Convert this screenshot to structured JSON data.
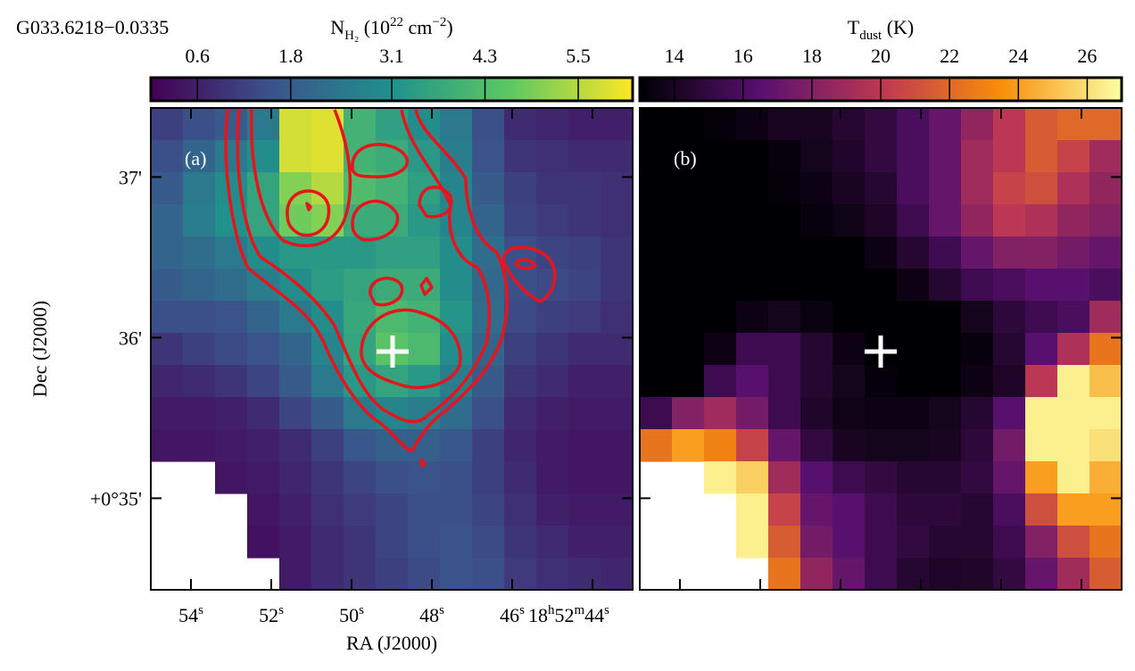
{
  "chart_data": [
    {
      "type": "heatmap",
      "title": "G033.6218−0.0335",
      "panel_label": "(a)",
      "colormap": "viridis",
      "colorbar_label": [
        "N",
        "H₂",
        " (10",
        "22",
        " cm",
        "−2",
        ")"
      ],
      "colorbar_label_styles": [
        "normal",
        "sub",
        "normal",
        "sup",
        "normal",
        "sup",
        "normal"
      ],
      "clim": [
        0,
        6.2
      ],
      "cticks": [
        0.6,
        1.8,
        3.1,
        4.3,
        5.5
      ],
      "x_label": "RA (J2000)",
      "y_label": "Dec (J2000)",
      "xlim": [
        55,
        43
      ],
      "ylim": [
        34.43,
        37.43
      ],
      "xticks": [
        {
          "value": 54,
          "label": [
            "54",
            "s"
          ]
        },
        {
          "value": 52,
          "label": [
            "52",
            "s"
          ]
        },
        {
          "value": 50,
          "label": [
            "50",
            "s"
          ]
        },
        {
          "value": 48,
          "label": [
            "48",
            "s"
          ]
        },
        {
          "value": 46,
          "label": [
            "46",
            "s"
          ]
        },
        {
          "value": 44,
          "label": [
            "18",
            "h",
            "52",
            "m",
            "44",
            "s"
          ]
        }
      ],
      "yticks": [
        {
          "value": 37,
          "label": "37'"
        },
        {
          "value": 36,
          "label": "36'"
        },
        {
          "value": 35,
          "label": "+0°35'"
        }
      ],
      "z": [
        [
          1.2,
          1.5,
          1.8,
          2.5,
          5.8,
          5.9,
          4.0,
          3.5,
          3.0,
          2.5,
          1.5,
          0.8,
          0.7,
          0.6,
          0.6
        ],
        [
          1.5,
          2.0,
          2.5,
          3.0,
          5.8,
          5.9,
          4.0,
          3.8,
          3.3,
          2.6,
          1.6,
          1.0,
          0.9,
          0.8,
          0.8
        ],
        [
          1.8,
          2.5,
          3.0,
          3.6,
          5.0,
          5.5,
          4.3,
          4.0,
          3.5,
          2.8,
          1.8,
          1.2,
          1.0,
          1.0,
          0.9
        ],
        [
          2.0,
          2.6,
          3.1,
          3.6,
          4.8,
          5.0,
          3.8,
          3.8,
          3.3,
          2.8,
          2.0,
          1.3,
          1.1,
          1.0,
          0.9
        ],
        [
          2.0,
          2.2,
          2.5,
          3.0,
          3.3,
          3.3,
          3.3,
          3.5,
          3.5,
          3.0,
          2.2,
          1.5,
          1.3,
          1.2,
          1.0
        ],
        [
          1.8,
          2.0,
          2.2,
          2.6,
          3.0,
          3.4,
          3.6,
          3.8,
          3.8,
          3.0,
          2.1,
          1.5,
          1.4,
          1.3,
          1.0
        ],
        [
          1.5,
          1.5,
          1.6,
          2.0,
          2.5,
          3.0,
          3.7,
          4.2,
          4.0,
          3.2,
          2.2,
          1.4,
          1.2,
          1.1,
          0.9
        ],
        [
          1.0,
          1.2,
          1.4,
          1.6,
          2.0,
          2.8,
          3.6,
          4.5,
          4.2,
          3.0,
          2.0,
          1.2,
          1.0,
          0.8,
          0.8
        ],
        [
          0.7,
          0.8,
          1.0,
          1.3,
          1.8,
          2.5,
          3.3,
          3.6,
          3.3,
          2.6,
          1.8,
          1.0,
          0.8,
          0.6,
          0.6
        ],
        [
          0.5,
          0.5,
          0.6,
          0.8,
          1.3,
          1.8,
          2.5,
          2.8,
          2.6,
          2.2,
          1.5,
          0.8,
          0.6,
          0.5,
          0.5
        ],
        [
          0.4,
          0.4,
          0.5,
          0.6,
          0.8,
          1.2,
          1.7,
          1.9,
          1.9,
          1.7,
          1.2,
          0.7,
          0.5,
          0.4,
          0.4
        ],
        [
          null,
          null,
          0.4,
          0.5,
          0.7,
          1.0,
          1.3,
          1.5,
          1.6,
          1.5,
          1.2,
          0.8,
          0.5,
          0.4,
          0.4
        ],
        [
          null,
          null,
          null,
          0.4,
          0.6,
          0.9,
          1.1,
          1.3,
          1.5,
          1.5,
          1.3,
          0.9,
          0.6,
          0.5,
          0.5
        ],
        [
          null,
          null,
          null,
          0.3,
          0.5,
          0.8,
          1.0,
          1.3,
          1.5,
          1.6,
          1.4,
          1.0,
          0.8,
          0.6,
          0.6
        ],
        [
          null,
          null,
          null,
          null,
          0.5,
          0.8,
          1.0,
          1.2,
          1.4,
          1.6,
          1.5,
          1.1,
          0.9,
          0.8,
          0.7
        ]
      ]
    },
    {
      "type": "heatmap",
      "panel_label": "(b)",
      "colormap": "inferno",
      "colorbar_label": [
        "T",
        "dust",
        " (K)"
      ],
      "colorbar_label_styles": [
        "normal",
        "sub",
        "normal"
      ],
      "clim": [
        13,
        27
      ],
      "cticks": [
        14,
        16,
        18,
        20,
        22,
        24,
        26
      ],
      "z": [
        [
          13,
          13,
          13.2,
          13.5,
          14,
          14,
          14.5,
          15,
          16,
          17,
          18.5,
          20,
          21.5,
          22,
          22
        ],
        [
          13,
          13,
          13,
          13,
          13.3,
          13.8,
          14.3,
          15,
          16,
          17,
          19,
          20,
          21.5,
          20.5,
          19
        ],
        [
          13,
          13,
          13,
          13,
          13.2,
          13.5,
          14,
          14.5,
          16,
          17,
          19,
          20.5,
          21,
          19.5,
          18.5
        ],
        [
          13,
          13,
          13,
          13,
          13,
          13.3,
          13.6,
          14.2,
          15.5,
          17,
          18.5,
          20,
          19.5,
          18.5,
          18
        ],
        [
          13,
          13,
          13,
          13,
          13,
          13,
          13,
          13.5,
          14.5,
          15.5,
          17,
          18,
          18,
          17.5,
          17
        ],
        [
          13,
          13,
          13,
          13,
          13,
          13,
          13,
          13,
          13.5,
          14.5,
          15.5,
          16,
          16.5,
          16.5,
          16
        ],
        [
          13,
          13,
          13,
          13.5,
          13.8,
          13.4,
          13,
          13,
          13,
          13,
          13.8,
          14.8,
          15.5,
          16,
          19
        ],
        [
          13,
          13,
          13.5,
          15.5,
          15.5,
          14.5,
          13.5,
          13,
          13,
          13,
          13.3,
          14.5,
          16.5,
          19.5,
          22.5
        ],
        [
          13,
          13,
          15.5,
          16.5,
          15.5,
          14.5,
          13.8,
          13.2,
          13,
          13,
          13.5,
          14.2,
          20,
          26.5,
          25
        ],
        [
          15.5,
          18,
          19,
          17.5,
          15.5,
          14.3,
          13.6,
          13.5,
          13.5,
          13.8,
          14.5,
          16.5,
          26.5,
          26.5,
          26.5
        ],
        [
          22.5,
          24,
          23,
          20.5,
          17,
          15,
          14,
          13.8,
          13.8,
          14,
          14.8,
          17.5,
          26.5,
          26.5,
          26
        ],
        [
          null,
          null,
          26.5,
          25.5,
          19,
          16.5,
          15.5,
          15,
          14.5,
          14.5,
          15,
          17,
          24,
          26.5,
          24.5
        ],
        [
          null,
          null,
          null,
          26.5,
          20.5,
          17,
          16.5,
          15.5,
          14.8,
          14.8,
          14.5,
          16,
          21,
          24,
          24
        ],
        [
          null,
          null,
          null,
          26.5,
          21.5,
          17.5,
          16.5,
          15.5,
          15,
          14.5,
          14.5,
          15.5,
          18,
          21,
          22.5
        ],
        [
          null,
          null,
          null,
          null,
          22.5,
          18.5,
          17,
          15.5,
          14.5,
          14.2,
          14.3,
          15,
          17,
          19,
          21.5
        ]
      ]
    }
  ]
}
